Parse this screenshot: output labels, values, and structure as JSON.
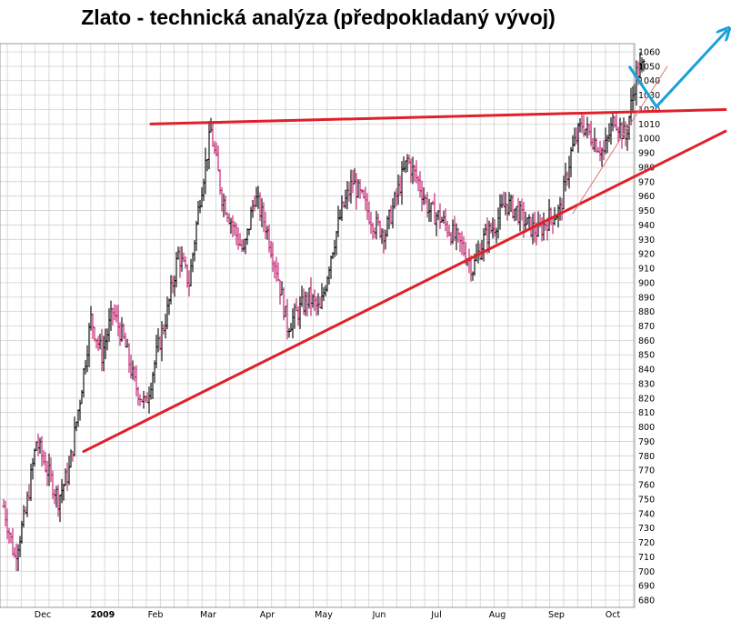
{
  "chart_data": {
    "type": "ohlc",
    "title": "Zlato - technická analýza (předpokladaný vývoj)",
    "xlabel": "",
    "ylabel": "",
    "ylim": [
      675,
      1065
    ],
    "y_ticks": [
      680,
      690,
      700,
      710,
      720,
      730,
      740,
      750,
      760,
      770,
      780,
      790,
      800,
      810,
      820,
      830,
      840,
      850,
      860,
      870,
      880,
      890,
      900,
      910,
      920,
      930,
      940,
      950,
      960,
      970,
      980,
      990,
      1000,
      1010,
      1020,
      1030,
      1040,
      1050,
      1060
    ],
    "x_ticks": [
      {
        "label": "Dec",
        "bold": false
      },
      {
        "label": "2009",
        "bold": true
      },
      {
        "label": "Feb",
        "bold": false
      },
      {
        "label": "Mar",
        "bold": false
      },
      {
        "label": "Apr",
        "bold": false
      },
      {
        "label": "May",
        "bold": false
      },
      {
        "label": "Jun",
        "bold": false
      },
      {
        "label": "Jul",
        "bold": false
      },
      {
        "label": "Aug",
        "bold": false
      },
      {
        "label": "Sep",
        "bold": false
      },
      {
        "label": "Oct",
        "bold": false
      }
    ],
    "grid": true,
    "colors": {
      "up_bar": "#000000",
      "down_bar": "#c0166a",
      "trendline": "#e0202a",
      "thin_trendline": "#e8707a",
      "projection": "#1aa0dc",
      "grid": "#d0d0d0"
    },
    "price_path": [
      [
        0,
        745
      ],
      [
        6,
        710
      ],
      [
        12,
        740
      ],
      [
        18,
        790
      ],
      [
        24,
        770
      ],
      [
        30,
        750
      ],
      [
        36,
        770
      ],
      [
        42,
        820
      ],
      [
        48,
        875
      ],
      [
        54,
        850
      ],
      [
        60,
        880
      ],
      [
        66,
        860
      ],
      [
        72,
        830
      ],
      [
        78,
        815
      ],
      [
        84,
        850
      ],
      [
        90,
        880
      ],
      [
        96,
        920
      ],
      [
        102,
        900
      ],
      [
        108,
        960
      ],
      [
        114,
        1005
      ],
      [
        120,
        960
      ],
      [
        126,
        940
      ],
      [
        132,
        920
      ],
      [
        138,
        960
      ],
      [
        144,
        940
      ],
      [
        150,
        910
      ],
      [
        156,
        870
      ],
      [
        162,
        880
      ],
      [
        168,
        890
      ],
      [
        174,
        880
      ],
      [
        180,
        920
      ],
      [
        186,
        950
      ],
      [
        192,
        970
      ],
      [
        198,
        955
      ],
      [
        204,
        940
      ],
      [
        210,
        935
      ],
      [
        216,
        960
      ],
      [
        222,
        985
      ],
      [
        228,
        970
      ],
      [
        234,
        950
      ],
      [
        240,
        945
      ],
      [
        246,
        935
      ],
      [
        252,
        925
      ],
      [
        258,
        910
      ],
      [
        264,
        930
      ],
      [
        270,
        940
      ],
      [
        276,
        955
      ],
      [
        282,
        950
      ],
      [
        288,
        940
      ],
      [
        294,
        935
      ],
      [
        300,
        945
      ],
      [
        306,
        950
      ],
      [
        312,
        990
      ],
      [
        318,
        1010
      ],
      [
        324,
        1000
      ],
      [
        330,
        990
      ],
      [
        336,
        1015
      ],
      [
        342,
        1000
      ],
      [
        348,
        1045
      ],
      [
        352,
        1050
      ]
    ],
    "trendlines": [
      {
        "kind": "resistance",
        "from": [
          81,
          1010
        ],
        "to": [
          380,
          1020
        ]
      },
      {
        "kind": "support",
        "from": [
          44,
          783
        ],
        "to": [
          380,
          1005
        ]
      },
      {
        "kind": "thin_support",
        "from": [
          313,
          948
        ],
        "to": [
          365,
          1050
        ]
      }
    ],
    "projection": [
      [
        348,
        1050
      ],
      [
        358,
        1025
      ],
      [
        377,
        1062
      ]
    ]
  }
}
